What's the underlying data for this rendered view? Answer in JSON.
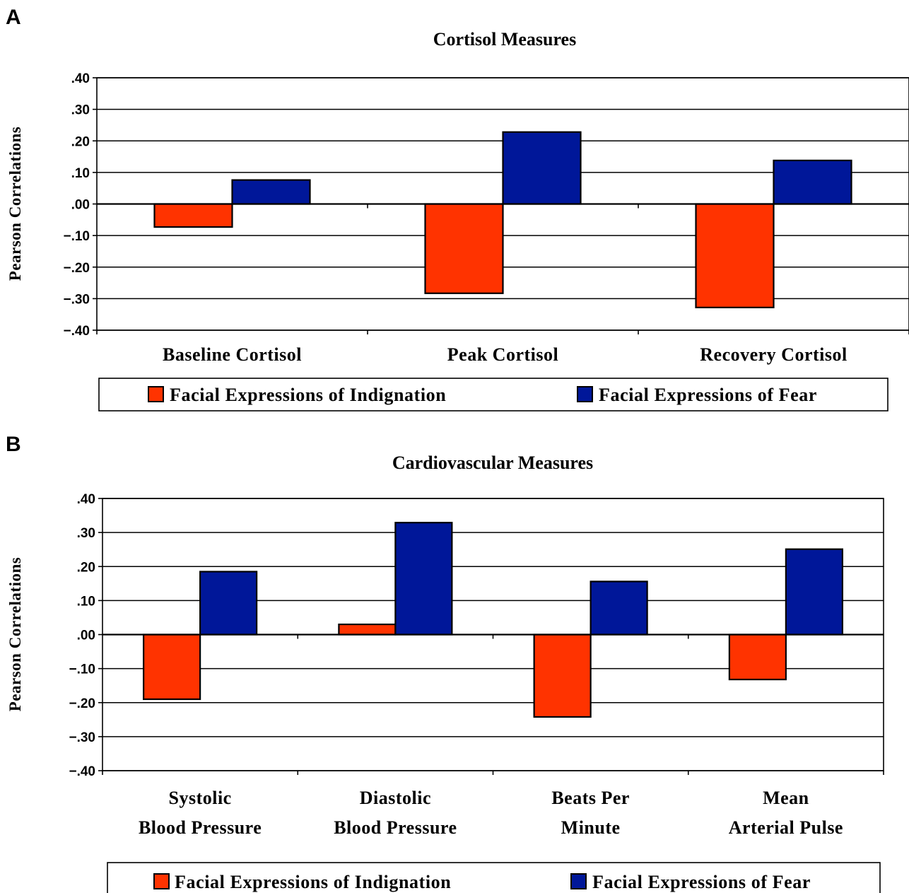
{
  "chart_data": [
    {
      "panel": "A",
      "type": "bar",
      "title": "Cortisol Measures",
      "ylabel": "Pearson Correlations",
      "xlabel": "",
      "ylim": [
        -0.4,
        0.4
      ],
      "yticks": [
        ".40",
        ".30",
        ".20",
        ".10",
        ".00",
        "−.10",
        "−.20",
        "−.30",
        "−.40"
      ],
      "grid": true,
      "legend_position": "bottom",
      "categories": [
        [
          "Baseline Cortisol"
        ],
        [
          "Peak Cortisol"
        ],
        [
          "Recovery Cortisol"
        ]
      ],
      "series": [
        {
          "name": "Facial Expressions of Indignation",
          "color": "#ff3300",
          "values": [
            -0.073,
            -0.283,
            -0.328
          ]
        },
        {
          "name": "Facial Expressions of Fear",
          "color": "#001799",
          "values": [
            0.076,
            0.228,
            0.138
          ]
        }
      ]
    },
    {
      "panel": "B",
      "type": "bar",
      "title": "Cardiovascular Measures",
      "ylabel": "Pearson Correlations",
      "xlabel": "",
      "ylim": [
        -0.4,
        0.4
      ],
      "yticks": [
        ".40",
        ".30",
        ".20",
        ".10",
        ".00",
        "−.10",
        "−.20",
        "−.30",
        "−.40"
      ],
      "grid": true,
      "legend_position": "bottom",
      "categories": [
        [
          "Systolic",
          "Blood Pressure"
        ],
        [
          "Diastolic",
          "Blood Pressure"
        ],
        [
          "Beats Per",
          "Minute"
        ],
        [
          "Mean",
          "Arterial Pulse"
        ]
      ],
      "series": [
        {
          "name": "Facial Expressions of Indignation",
          "color": "#ff3300",
          "values": [
            -0.19,
            0.03,
            -0.242,
            -0.132
          ]
        },
        {
          "name": "Facial Expressions of Fear",
          "color": "#001799",
          "values": [
            0.185,
            0.329,
            0.156,
            0.251
          ]
        }
      ]
    }
  ]
}
